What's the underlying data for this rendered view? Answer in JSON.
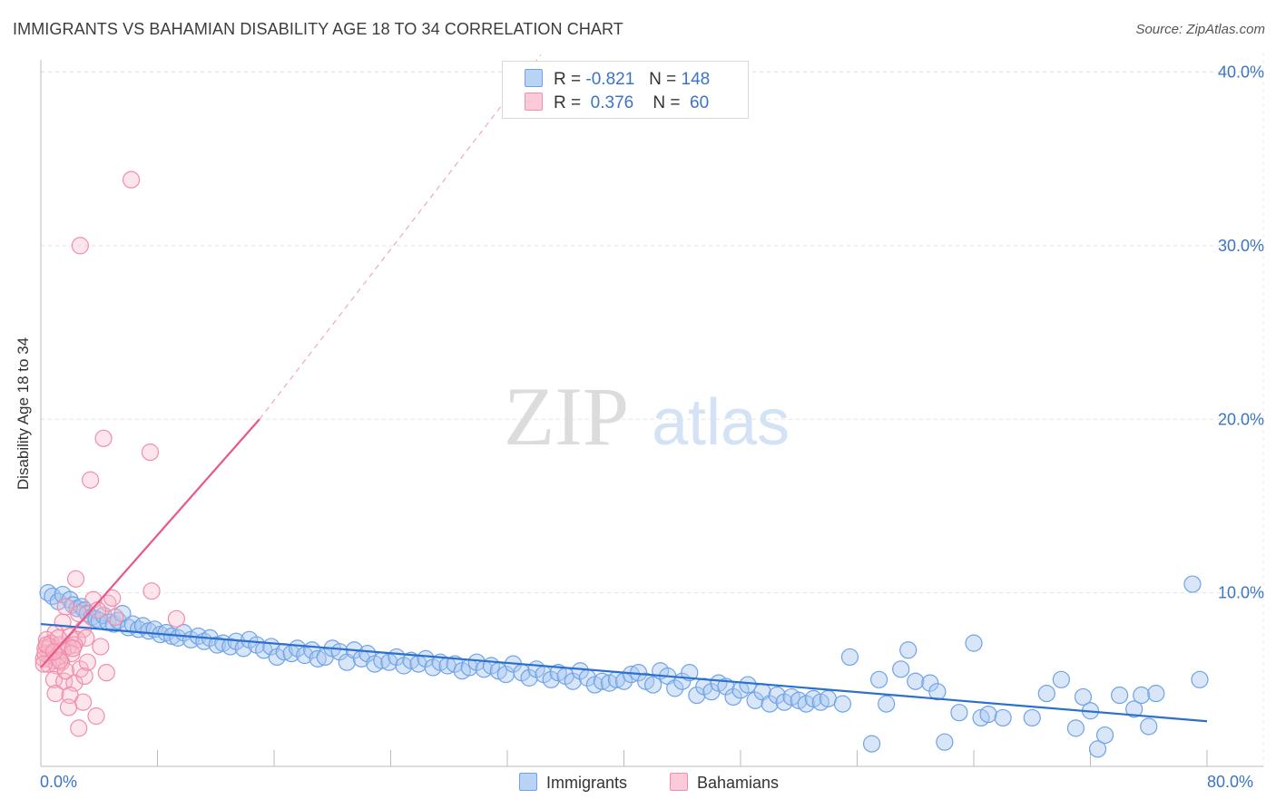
{
  "header": {
    "title": "IMMIGRANTS VS BAHAMIAN DISABILITY AGE 18 TO 34 CORRELATION CHART",
    "source": "Source: ZipAtlas.com"
  },
  "watermark": {
    "zip": "ZIP",
    "atlas": "atlas"
  },
  "legend": {
    "rows": [
      {
        "r_label": "R =",
        "r_value": "-0.821",
        "n_label": "N =",
        "n_value": "148",
        "color": "#a9c8f0"
      },
      {
        "r_label": "R =",
        "r_value": "0.376",
        "n_label": "N =",
        "n_value": "60",
        "color": "#f7b6c9"
      }
    ]
  },
  "bottom_legend": {
    "immigrants": "Immigrants",
    "bahamians": "Bahamians"
  },
  "chart_data": {
    "type": "scatter",
    "ylabel": "Disability Age 18 to 34",
    "x_tick_labels": {
      "min": "0.0%",
      "max": "80.0%"
    },
    "y_tick_labels": [
      "10.0%",
      "20.0%",
      "30.0%",
      "40.0%"
    ],
    "xlim": [
      0,
      80
    ],
    "ylim": [
      0,
      41
    ],
    "grid": true,
    "legend_position": "top-center",
    "colors": {
      "immigrants": "#6fa3e8",
      "bahamians": "#f28cab",
      "immigrants_line": "#2b6fcf",
      "bahamians_line": "#e8578a"
    },
    "series": [
      {
        "name": "Immigrants",
        "trend": {
          "x": [
            0,
            80
          ],
          "y": [
            8.2,
            2.6
          ]
        },
        "points": [
          [
            0.5,
            10.0
          ],
          [
            0.8,
            9.8
          ],
          [
            1.2,
            9.5
          ],
          [
            1.5,
            9.9
          ],
          [
            2.0,
            9.6
          ],
          [
            2.2,
            9.3
          ],
          [
            2.5,
            9.1
          ],
          [
            2.8,
            9.2
          ],
          [
            3.0,
            9.0
          ],
          [
            3.2,
            8.8
          ],
          [
            3.5,
            8.6
          ],
          [
            3.8,
            8.5
          ],
          [
            4.0,
            8.4
          ],
          [
            4.3,
            8.7
          ],
          [
            4.6,
            8.3
          ],
          [
            5.0,
            8.2
          ],
          [
            5.3,
            8.4
          ],
          [
            5.6,
            8.8
          ],
          [
            6.0,
            8.0
          ],
          [
            6.3,
            8.2
          ],
          [
            6.7,
            7.9
          ],
          [
            7.0,
            8.1
          ],
          [
            7.4,
            7.8
          ],
          [
            7.8,
            7.9
          ],
          [
            8.2,
            7.6
          ],
          [
            8.6,
            7.7
          ],
          [
            9.0,
            7.5
          ],
          [
            9.4,
            7.4
          ],
          [
            9.8,
            7.7
          ],
          [
            10.3,
            7.3
          ],
          [
            10.8,
            7.5
          ],
          [
            11.2,
            7.2
          ],
          [
            11.6,
            7.4
          ],
          [
            12.1,
            7.0
          ],
          [
            12.5,
            7.1
          ],
          [
            13.0,
            6.9
          ],
          [
            13.4,
            7.2
          ],
          [
            13.9,
            6.8
          ],
          [
            14.3,
            7.3
          ],
          [
            14.8,
            7.0
          ],
          [
            15.3,
            6.7
          ],
          [
            15.8,
            6.9
          ],
          [
            16.2,
            6.3
          ],
          [
            16.7,
            6.6
          ],
          [
            17.2,
            6.5
          ],
          [
            17.6,
            6.8
          ],
          [
            18.1,
            6.4
          ],
          [
            18.6,
            6.7
          ],
          [
            19.0,
            6.2
          ],
          [
            19.5,
            6.3
          ],
          [
            20.0,
            6.8
          ],
          [
            20.5,
            6.6
          ],
          [
            21.0,
            6.0
          ],
          [
            21.5,
            6.7
          ],
          [
            22.0,
            6.2
          ],
          [
            22.4,
            6.5
          ],
          [
            22.9,
            5.9
          ],
          [
            23.4,
            6.1
          ],
          [
            23.9,
            6.0
          ],
          [
            24.4,
            6.3
          ],
          [
            24.9,
            5.8
          ],
          [
            25.4,
            6.1
          ],
          [
            25.9,
            5.9
          ],
          [
            26.4,
            6.2
          ],
          [
            26.9,
            5.7
          ],
          [
            27.4,
            6.0
          ],
          [
            27.9,
            5.8
          ],
          [
            28.4,
            5.9
          ],
          [
            28.9,
            5.5
          ],
          [
            29.4,
            5.7
          ],
          [
            29.9,
            6.0
          ],
          [
            30.4,
            5.6
          ],
          [
            30.9,
            5.8
          ],
          [
            31.4,
            5.5
          ],
          [
            31.9,
            5.3
          ],
          [
            32.4,
            5.9
          ],
          [
            33.0,
            5.4
          ],
          [
            33.5,
            5.1
          ],
          [
            34.0,
            5.6
          ],
          [
            34.5,
            5.3
          ],
          [
            35.0,
            5.0
          ],
          [
            35.5,
            5.4
          ],
          [
            36.0,
            5.2
          ],
          [
            36.5,
            4.9
          ],
          [
            37.0,
            5.5
          ],
          [
            37.5,
            5.1
          ],
          [
            38.0,
            4.7
          ],
          [
            38.5,
            4.9
          ],
          [
            39.0,
            4.8
          ],
          [
            39.5,
            5.0
          ],
          [
            40.0,
            4.9
          ],
          [
            40.5,
            5.3
          ],
          [
            41.0,
            5.4
          ],
          [
            41.5,
            4.9
          ],
          [
            42.0,
            4.7
          ],
          [
            42.5,
            5.5
          ],
          [
            43.0,
            5.2
          ],
          [
            43.5,
            4.5
          ],
          [
            44.0,
            4.9
          ],
          [
            44.5,
            5.4
          ],
          [
            45.0,
            4.1
          ],
          [
            45.5,
            4.6
          ],
          [
            46.0,
            4.3
          ],
          [
            46.5,
            4.8
          ],
          [
            47.0,
            4.6
          ],
          [
            47.5,
            4.0
          ],
          [
            48.0,
            4.4
          ],
          [
            48.5,
            4.7
          ],
          [
            49.0,
            3.8
          ],
          [
            49.5,
            4.3
          ],
          [
            50.0,
            3.6
          ],
          [
            50.5,
            4.1
          ],
          [
            51.0,
            3.7
          ],
          [
            51.5,
            4.0
          ],
          [
            52.0,
            3.8
          ],
          [
            52.5,
            3.6
          ],
          [
            53.0,
            3.9
          ],
          [
            53.5,
            3.7
          ],
          [
            54.0,
            3.9
          ],
          [
            55.0,
            3.6
          ],
          [
            55.5,
            6.3
          ],
          [
            57.0,
            1.3
          ],
          [
            57.5,
            5.0
          ],
          [
            58.0,
            3.6
          ],
          [
            59.0,
            5.6
          ],
          [
            59.5,
            6.7
          ],
          [
            60.0,
            4.9
          ],
          [
            61.0,
            4.8
          ],
          [
            61.5,
            4.3
          ],
          [
            62.0,
            1.4
          ],
          [
            63.0,
            3.1
          ],
          [
            64.0,
            7.1
          ],
          [
            64.5,
            2.8
          ],
          [
            65.0,
            3.0
          ],
          [
            66.0,
            2.8
          ],
          [
            68.0,
            2.8
          ],
          [
            69.0,
            4.2
          ],
          [
            70.0,
            5.0
          ],
          [
            71.0,
            2.2
          ],
          [
            71.5,
            4.0
          ],
          [
            72.0,
            3.2
          ],
          [
            72.5,
            1.0
          ],
          [
            73.0,
            1.8
          ],
          [
            74.0,
            4.1
          ],
          [
            75.0,
            3.3
          ],
          [
            75.5,
            4.1
          ],
          [
            76.0,
            2.3
          ],
          [
            76.5,
            4.2
          ],
          [
            79.0,
            10.5
          ],
          [
            79.5,
            5.0
          ]
        ]
      },
      {
        "name": "Bahamians",
        "trend": {
          "x": [
            0,
            15
          ],
          "y": [
            5.7,
            20.0
          ]
        },
        "trend_extension": {
          "x": [
            15,
            34.3
          ],
          "y": [
            20.0,
            41.0
          ]
        },
        "points": [
          [
            6.2,
            33.8
          ],
          [
            2.7,
            30.0
          ],
          [
            4.3,
            18.9
          ],
          [
            7.5,
            18.1
          ],
          [
            3.4,
            16.5
          ],
          [
            2.4,
            10.8
          ],
          [
            7.6,
            10.1
          ],
          [
            4.6,
            9.4
          ],
          [
            1.7,
            9.2
          ],
          [
            3.6,
            9.6
          ],
          [
            4.9,
            9.7
          ],
          [
            3.9,
            9.0
          ],
          [
            2.6,
            8.8
          ],
          [
            5.1,
            8.6
          ],
          [
            1.5,
            8.3
          ],
          [
            2.9,
            7.9
          ],
          [
            1.0,
            7.7
          ],
          [
            2.0,
            7.5
          ],
          [
            2.5,
            7.3
          ],
          [
            3.1,
            7.4
          ],
          [
            0.4,
            7.3
          ],
          [
            0.7,
            7.1
          ],
          [
            1.3,
            7.0
          ],
          [
            1.9,
            6.9
          ],
          [
            2.3,
            7.0
          ],
          [
            0.3,
            6.8
          ],
          [
            0.9,
            6.6
          ],
          [
            1.5,
            6.7
          ],
          [
            2.1,
            6.5
          ],
          [
            0.6,
            6.4
          ],
          [
            1.2,
            6.3
          ],
          [
            0.2,
            6.2
          ],
          [
            0.8,
            6.1
          ],
          [
            1.4,
            6.0
          ],
          [
            0.5,
            5.9
          ],
          [
            1.1,
            5.8
          ],
          [
            2.7,
            5.6
          ],
          [
            4.5,
            5.4
          ],
          [
            0.9,
            5.0
          ],
          [
            1.6,
            4.9
          ],
          [
            2.3,
            4.8
          ],
          [
            0.3,
            6.5
          ],
          [
            0.6,
            6.9
          ],
          [
            1.7,
            5.5
          ],
          [
            3.0,
            5.2
          ],
          [
            1.0,
            4.2
          ],
          [
            2.0,
            4.1
          ],
          [
            2.9,
            3.7
          ],
          [
            1.9,
            3.4
          ],
          [
            3.8,
            2.9
          ],
          [
            2.6,
            2.2
          ],
          [
            1.3,
            6.1
          ],
          [
            0.4,
            7.0
          ],
          [
            0.2,
            5.9
          ],
          [
            1.2,
            7.4
          ],
          [
            2.2,
            6.8
          ],
          [
            3.2,
            6.0
          ],
          [
            4.1,
            6.9
          ],
          [
            9.3,
            8.5
          ],
          [
            0.9,
            6.6
          ]
        ]
      }
    ]
  }
}
